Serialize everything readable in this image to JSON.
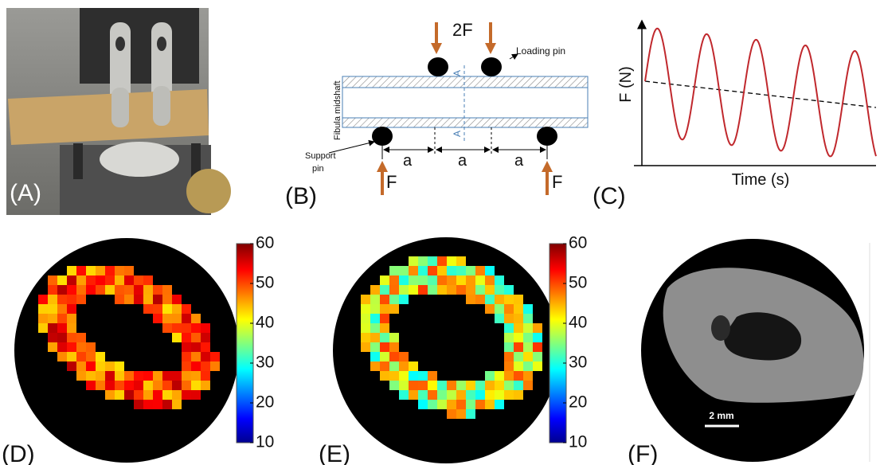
{
  "panels": [
    {
      "label": "(A)"
    },
    {
      "label": "(B)",
      "texts": {
        "force_top": "2F",
        "loading_pin": "Loading pin",
        "specimen": "Fibula midshaft",
        "section_top": "A",
        "section_bottom": "A",
        "support_pin_line1": "Support",
        "support_pin_line2": "pin",
        "span_1": "a",
        "span_2": "a",
        "span_3": "a",
        "force_left": "F",
        "force_right": "F"
      }
    },
    {
      "label": "(C)",
      "y_label": "F (N)",
      "x_label": "Time (s)"
    },
    {
      "label": "(D)",
      "colorbar_ticks": [
        60,
        50,
        40,
        30,
        20,
        10
      ]
    },
    {
      "label": "(E)",
      "colorbar_ticks": [
        60,
        50,
        40,
        30,
        20,
        10
      ]
    },
    {
      "label": "(F)",
      "scale_bar": "2 mm"
    }
  ]
}
